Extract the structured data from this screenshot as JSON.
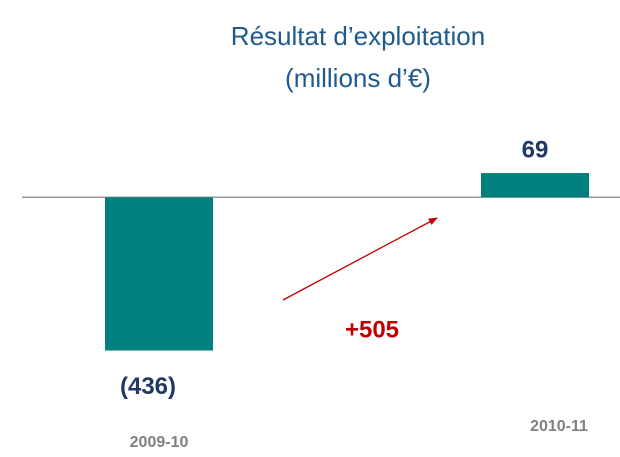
{
  "chart_data": {
    "type": "bar",
    "title": "Résultat d’exploitation",
    "subtitle": "(millions d’€)",
    "categories": [
      "2009-10",
      "2010-11"
    ],
    "values": [
      -436,
      69
    ],
    "value_labels": [
      "(436)",
      "69"
    ],
    "color": "#00807f",
    "ylim": [
      -500,
      200
    ],
    "annotation": "+505"
  }
}
